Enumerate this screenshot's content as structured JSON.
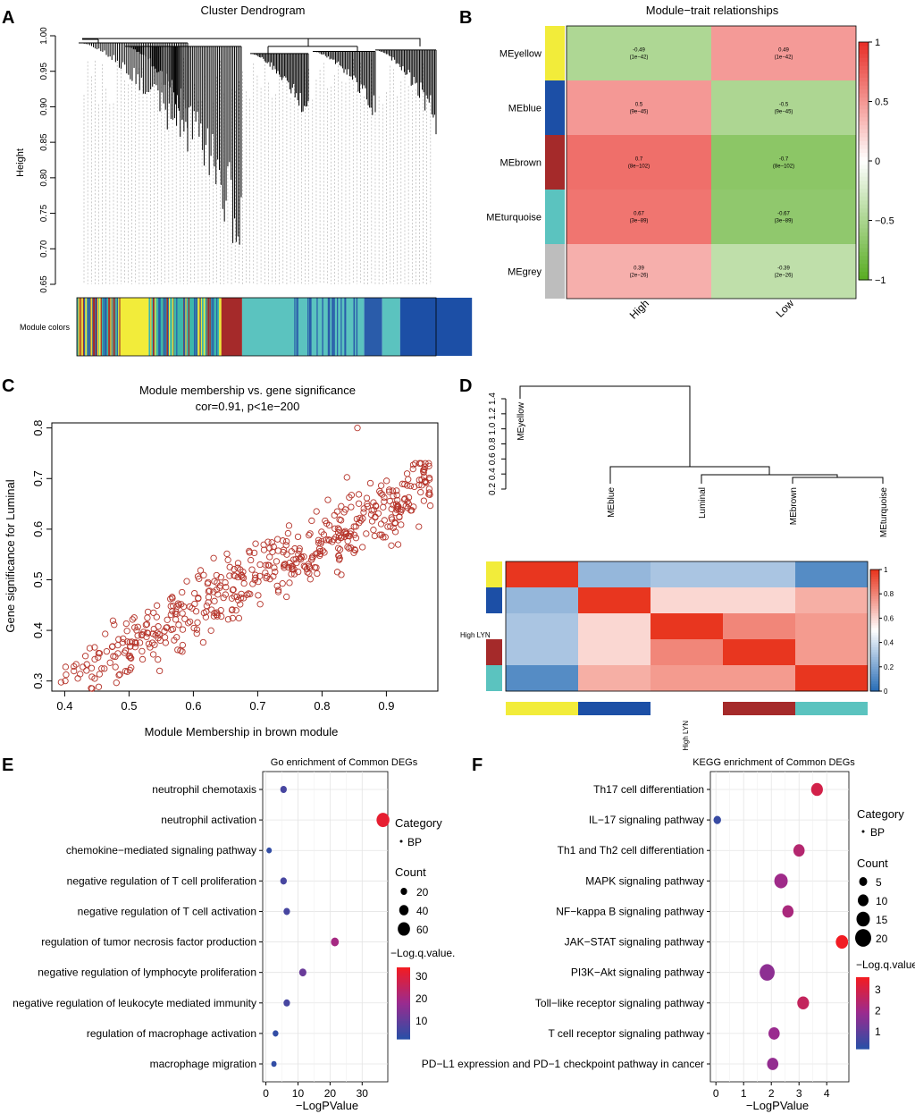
{
  "panel_letters": [
    "A",
    "B",
    "C",
    "D",
    "E",
    "F"
  ],
  "chart_data": [
    {
      "panel": "A",
      "type": "dendrogram",
      "title": "Cluster Dendrogram",
      "ylabel": "Height",
      "ylim": [
        0.65,
        1.0
      ],
      "yticks": [
        "1.00",
        "0.95",
        "0.90",
        "0.85",
        "0.80",
        "0.75",
        "0.70",
        "0.65"
      ],
      "ytick_values": [
        1.0,
        0.95,
        0.9,
        0.85,
        0.8,
        0.75,
        0.7,
        0.65
      ],
      "module_colors_label": "Module colors",
      "module_bar": [
        {
          "color": "#3db7aa",
          "span": 0.12
        },
        {
          "color": "#f2ec3a",
          "span": 0.08
        },
        {
          "color": "#3db7aa",
          "span": 0.2
        },
        {
          "color": "#a52a2a",
          "span": 0.06
        },
        {
          "color": "#5bc3bf",
          "span": 0.34
        },
        {
          "color": "#2a5caa",
          "span": 0.05
        },
        {
          "color": "#5bc3bf",
          "span": 0.05
        },
        {
          "color": "#1c4fa6",
          "span": 0.2
        }
      ]
    },
    {
      "panel": "B",
      "type": "heatmap",
      "title": "Module−trait relationships",
      "rows": [
        "MEyellow",
        "MEblue",
        "MEbrown",
        "MEturquoise",
        "MEgrey"
      ],
      "row_colors": [
        "#f2ec3a",
        "#1c4fa6",
        "#a52a2a",
        "#5bc3bf",
        "#bdbdbd"
      ],
      "columns": [
        "High",
        "Low"
      ],
      "values": [
        [
          -0.49,
          0.49
        ],
        [
          0.5,
          -0.5
        ],
        [
          0.7,
          -0.7
        ],
        [
          0.67,
          -0.67
        ],
        [
          0.39,
          -0.39
        ]
      ],
      "labels": [
        [
          "-0.49",
          "0.49"
        ],
        [
          "0.5",
          "-0.5"
        ],
        [
          "0.7",
          "-0.7"
        ],
        [
          "0.67",
          "-0.67"
        ],
        [
          "0.39",
          "-0.39"
        ]
      ],
      "pvalues": [
        [
          "(1e−42)",
          "(1e−42)"
        ],
        [
          "(9e−45)",
          "(9e−45)"
        ],
        [
          "(8e−102)",
          "(8e−102)"
        ],
        [
          "(3e−89)",
          "(3e−89)"
        ],
        [
          "(2e−26)",
          "(2e−26)"
        ]
      ],
      "colorbar_ticks": [
        "1",
        "0.5",
        "0",
        "−0.5",
        "−1"
      ],
      "colorbar_tick_values": [
        1,
        0.5,
        0,
        -0.5,
        -1
      ]
    },
    {
      "panel": "C",
      "type": "scatter",
      "title": "Module membership vs. gene significance",
      "subtitle": "cor=0.91, p<1e−200",
      "xlabel": "Module Membership in brown module",
      "ylabel": "Gene significance for Luminal",
      "xlim": [
        0.38,
        0.98
      ],
      "ylim": [
        0.28,
        0.81
      ],
      "xticks": [
        "0.4",
        "0.5",
        "0.6",
        "0.7",
        "0.8",
        "0.9"
      ],
      "xtick_values": [
        0.4,
        0.5,
        0.6,
        0.7,
        0.8,
        0.9
      ],
      "yticks": [
        "0.3",
        "0.4",
        "0.5",
        "0.6",
        "0.7",
        "0.8"
      ],
      "ytick_values": [
        0.3,
        0.4,
        0.5,
        0.6,
        0.7,
        0.8
      ],
      "point_color": "#b5342a",
      "n_points": 520,
      "slope": 0.68,
      "intercept": 0.03,
      "outlier": [
        0.855,
        0.8
      ]
    },
    {
      "panel": "D",
      "type": "dendrogram_heatmap",
      "dendro_yticks": [
        "1.4",
        "1.2",
        "1.0",
        "0.8",
        "0.6",
        "0.4",
        "0.2"
      ],
      "dendro_ytick_values": [
        1.4,
        1.2,
        1.0,
        0.8,
        0.6,
        0.4,
        0.2
      ],
      "leaves": [
        "MEyellow",
        "MEblue",
        "Luminal",
        "MEbrown",
        "MEturquoise"
      ],
      "row_label": "High LYN",
      "col_label": "High LYN",
      "row_colors": [
        "#f2ec3a",
        "#1c4fa6",
        "#ffffff",
        "#a52a2a",
        "#5bc3bf"
      ],
      "col_colors": [
        "#f2ec3a",
        "#1c4fa6",
        "#ffffff",
        "#a52a2a",
        "#5bc3bf"
      ],
      "matrix": [
        [
          1.0,
          0.25,
          0.3,
          0.3,
          0.1
        ],
        [
          0.25,
          1.0,
          0.6,
          0.6,
          0.7
        ],
        [
          0.3,
          0.6,
          1.0,
          0.8,
          0.75
        ],
        [
          0.3,
          0.6,
          0.8,
          1.0,
          0.75
        ],
        [
          0.1,
          0.7,
          0.75,
          0.75,
          1.0
        ]
      ],
      "colorbar_ticks": [
        "1",
        "0.8",
        "0.6",
        "0.4",
        "0.2",
        "0"
      ],
      "colorbar_tick_values": [
        1,
        0.8,
        0.6,
        0.4,
        0.2,
        0
      ]
    },
    {
      "panel": "E",
      "type": "scatter",
      "title": "Go enrichment of Common DEGs",
      "xlabel": "−LogPValue",
      "xlim": [
        -1,
        38
      ],
      "xticks": [
        "0",
        "10",
        "20",
        "30"
      ],
      "xtick_values": [
        0,
        10,
        20,
        30
      ],
      "categories": [
        "neutrophil chemotaxis",
        "neutrophil activation",
        "chemokine−mediated signaling pathway",
        "negative regulation of T cell proliferation",
        "negative regulation of T cell activation",
        "regulation of tumor necrosis factor production",
        "negative regulation of lymphocyte proliferation",
        "negative regulation of leukocyte mediated immunity",
        "regulation of macrophage activation",
        "macrophage migration"
      ],
      "x": [
        5.5,
        36.5,
        1.0,
        5.5,
        6.5,
        21.5,
        11.5,
        6.5,
        3.0,
        2.5
      ],
      "count": [
        20,
        65,
        12,
        20,
        20,
        30,
        25,
        20,
        15,
        12
      ],
      "q": [
        6,
        32,
        3,
        6,
        6,
        20,
        11,
        6,
        3,
        3
      ],
      "legend_category_title": "Category",
      "legend_category_item": "BP",
      "legend_count_title": "Count",
      "legend_count_labels": [
        "20",
        "40",
        "60"
      ],
      "legend_count_values": [
        20,
        40,
        60
      ],
      "legend_color_title": "−Log.q.value.",
      "legend_color_labels": [
        "30",
        "20",
        "10"
      ],
      "legend_color_values": [
        30,
        20,
        10
      ],
      "q_range": [
        2,
        34
      ]
    },
    {
      "panel": "F",
      "type": "scatter",
      "title": "KEGG enrichment of Common DEGs",
      "xlabel": "−LogPValue",
      "xlim": [
        -0.2,
        4.8
      ],
      "xticks": [
        "0",
        "1",
        "2",
        "3",
        "4"
      ],
      "xtick_values": [
        0,
        1,
        2,
        3,
        4
      ],
      "categories": [
        "Th17 cell differentiation",
        "IL−17 signaling pathway",
        "Th1 and Th2 cell differentiation",
        "MAPK signaling pathway",
        "NF−kappa B signaling pathway",
        "JAK−STAT signaling pathway",
        "PI3K−Akt signaling pathway",
        "Toll−like receptor signaling pathway",
        "T cell receptor signaling pathway",
        "PD−L1 expression and PD−1 checkpoint pathway in cancer"
      ],
      "x": [
        3.65,
        0.05,
        3.0,
        2.35,
        2.6,
        4.55,
        1.85,
        3.15,
        2.1,
        2.05
      ],
      "count": [
        12,
        4,
        11,
        15,
        11,
        13,
        18,
        12,
        11,
        11
      ],
      "q": [
        3.0,
        0.4,
        2.4,
        2.0,
        2.2,
        3.6,
        1.7,
        2.7,
        1.9,
        1.8
      ],
      "legend_category_title": "Category",
      "legend_category_item": "BP",
      "legend_count_title": "Count",
      "legend_count_labels": [
        "5",
        "10",
        "15",
        "20"
      ],
      "legend_count_values": [
        5,
        10,
        15,
        20
      ],
      "legend_color_title": "−Log.q.value.",
      "legend_color_labels": [
        "3",
        "2",
        "1"
      ],
      "legend_color_values": [
        3,
        2,
        1
      ],
      "q_range": [
        0.2,
        3.6
      ]
    }
  ]
}
